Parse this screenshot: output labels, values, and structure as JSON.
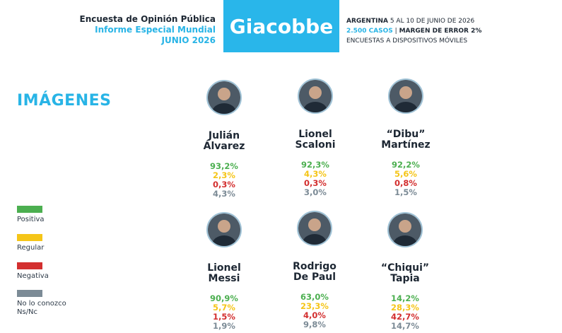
{
  "header": {
    "line1": "Encuesta de Opinión Pública",
    "line2": "Informe Especial Mundial",
    "line3": "JUNIO 2026",
    "brand": "Giacobbe",
    "country": "ARGENTINA",
    "dates": "5 AL 10 DE JUNIO DE 2026",
    "cases": "2.500 CASOS",
    "margin": "MARGEN DE ERROR 2%",
    "method": "ENCUESTAS A DISPOSITIVOS MÓVILES"
  },
  "section_title": "IMÁGENES",
  "legend": [
    {
      "label": "Positiva",
      "color": "#4caf50"
    },
    {
      "label": "Regular",
      "color": "#f5c518"
    },
    {
      "label": "Negativa",
      "color": "#d32f2f"
    },
    {
      "label": "No lo conozco\nNs/Nc",
      "color": "#7c8b96"
    }
  ],
  "people": [
    {
      "name1": "Julián",
      "name2": "Álvarez",
      "values": [
        "93,2%",
        "2,3%",
        "0,3%",
        "4,3%"
      ]
    },
    {
      "name1": "Lionel",
      "name2": "Scaloni",
      "values": [
        "92,3%",
        "4,3%",
        "0,3%",
        "3,0%"
      ]
    },
    {
      "name1": "“Dibu”",
      "name2": "Martínez",
      "values": [
        "92,2%",
        "5,6%",
        "0,8%",
        "1,5%"
      ]
    },
    {
      "name1": "Lionel",
      "name2": "Messi",
      "values": [
        "90,9%",
        "5,7%",
        "1,5%",
        "1,9%"
      ]
    },
    {
      "name1": "Rodrigo",
      "name2": "De Paul",
      "values": [
        "63,0%",
        "23,3%",
        "4,0%",
        "9,8%"
      ]
    },
    {
      "name1": "“Chiqui”",
      "name2": "Tapia",
      "values": [
        "14,2%",
        "28,3%",
        "42,7%",
        "14,7%"
      ]
    }
  ],
  "chart_data": {
    "type": "table",
    "title": "IMÁGENES",
    "categories": [
      "Julián Álvarez",
      "Lionel Scaloni",
      "“Dibu” Martínez",
      "Lionel Messi",
      "Rodrigo De Paul",
      "“Chiqui” Tapia"
    ],
    "series": [
      {
        "name": "Positiva",
        "values": [
          93.2,
          92.3,
          92.2,
          90.9,
          63.0,
          14.2
        ]
      },
      {
        "name": "Regular",
        "values": [
          2.3,
          4.3,
          5.6,
          5.7,
          23.3,
          28.3
        ]
      },
      {
        "name": "Negativa",
        "values": [
          0.3,
          0.3,
          0.8,
          1.5,
          4.0,
          42.7
        ]
      },
      {
        "name": "No lo conozco Ns/Nc",
        "values": [
          4.3,
          3.0,
          1.5,
          1.9,
          9.8,
          14.7
        ]
      }
    ]
  },
  "icons": {
    "avatar": "person-photo-icon"
  }
}
